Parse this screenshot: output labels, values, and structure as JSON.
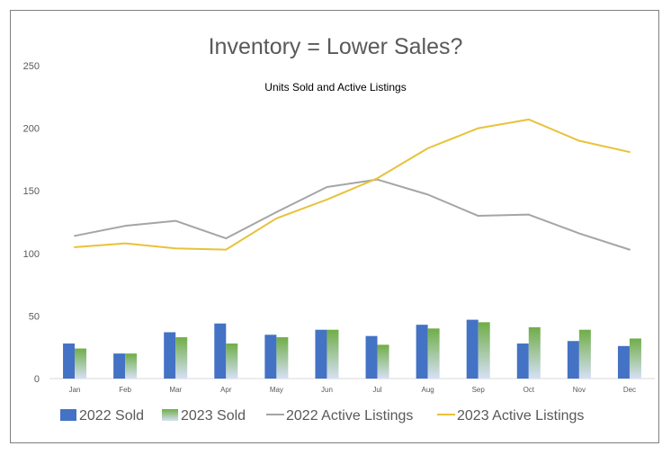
{
  "chart_data": {
    "type": "bar",
    "title": "Inventory = Lower Sales?",
    "subtitle": "Units Sold and Active Listings",
    "categories": [
      "Jan",
      "Feb",
      "Mar",
      "Apr",
      "May",
      "Jun",
      "Jul",
      "Aug",
      "Sep",
      "Oct",
      "Nov",
      "Dec"
    ],
    "ylim": [
      0,
      250
    ],
    "yticks": [
      0,
      50,
      100,
      150,
      200,
      250
    ],
    "grid": false,
    "legend": "bottom",
    "series": [
      {
        "name": "2022 Sold",
        "type": "bar",
        "color": "#4472c4",
        "values": [
          28,
          20,
          37,
          44,
          35,
          39,
          34,
          43,
          47,
          28,
          30,
          26
        ]
      },
      {
        "name": "2023 Sold",
        "type": "bar",
        "color": "#70ad47",
        "values": [
          24,
          20,
          33,
          28,
          33,
          39,
          27,
          40,
          45,
          41,
          39,
          32
        ]
      },
      {
        "name": "2022 Active Listings",
        "type": "line",
        "color": "#a5a5a5",
        "values": [
          114,
          122,
          126,
          112,
          133,
          153,
          159,
          147,
          130,
          131,
          116,
          103
        ]
      },
      {
        "name": "2023 Active Listings",
        "type": "line",
        "color": "#e8c23a",
        "values": [
          105,
          108,
          104,
          103,
          128,
          143,
          160,
          184,
          200,
          207,
          190,
          181
        ]
      }
    ]
  }
}
